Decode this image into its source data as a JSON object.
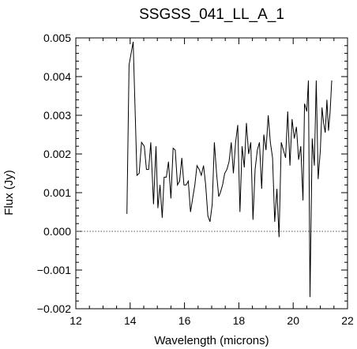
{
  "chart_data": {
    "type": "line",
    "title": "SSGSS_041_LL_A_1",
    "xlabel": "Wavelength (microns)",
    "ylabel": "Flux (Jy)",
    "xlim": [
      12,
      22
    ],
    "ylim": [
      -0.002,
      0.005
    ],
    "x_ticks": [
      "12",
      "14",
      "16",
      "18",
      "20",
      "22"
    ],
    "y_ticks": [
      "−0.002",
      "−0.001",
      "0.000",
      "0.001",
      "0.002",
      "0.003",
      "0.004",
      "0.005"
    ],
    "zero_line": true,
    "grid": false,
    "series": [
      {
        "x": [
          13.88,
          13.96,
          14.11,
          14.25,
          14.33,
          14.42,
          14.52,
          14.6,
          14.68,
          14.76,
          14.86,
          14.95,
          15.02,
          15.1,
          15.18,
          15.25,
          15.33,
          15.41,
          15.5,
          15.58,
          15.66,
          15.74,
          15.82,
          15.9,
          15.98,
          16.06,
          16.14,
          16.22,
          16.3,
          16.38,
          16.46,
          16.54,
          16.62,
          16.7,
          16.78,
          16.86,
          16.94,
          17.02,
          17.1,
          17.18,
          17.26,
          17.32,
          17.4,
          17.48,
          17.56,
          17.64,
          17.72,
          17.8,
          17.88,
          17.96,
          18.04,
          18.12,
          18.2,
          18.28,
          18.36,
          18.44,
          18.52,
          18.6,
          18.68,
          18.76,
          18.84,
          18.92,
          19.0,
          19.08,
          19.16,
          19.24,
          19.32,
          19.4,
          19.48,
          19.56,
          19.64,
          19.72,
          19.8,
          19.88,
          19.96,
          20.04,
          20.12,
          20.2,
          20.28,
          20.36,
          20.42,
          20.5,
          20.56,
          20.62,
          20.7,
          20.78,
          20.85,
          20.92,
          21.0,
          21.06,
          21.12,
          21.18,
          21.24,
          21.3,
          21.36,
          21.42
        ],
        "y": [
          0.00045,
          0.0043,
          0.0049,
          0.00145,
          0.0015,
          0.0023,
          0.0022,
          0.0016,
          0.0016,
          0.0023,
          0.0007,
          0.0022,
          0.0006,
          0.0012,
          0.00035,
          0.0014,
          0.0014,
          0.0018,
          0.00085,
          0.00215,
          0.0021,
          0.0012,
          0.0013,
          0.0019,
          0.0012,
          0.0012,
          0.0013,
          0.0005,
          0.00085,
          0.0012,
          0.0017,
          0.0016,
          0.00145,
          0.0017,
          0.0012,
          0.0004,
          0.00025,
          0.0007,
          0.0023,
          0.0015,
          0.0009,
          0.001,
          0.0012,
          0.0015,
          0.0016,
          0.0018,
          0.0023,
          0.0015,
          0.0023,
          0.00275,
          0.0005,
          0.0022,
          0.00165,
          0.0028,
          0.002,
          0.0023,
          0.0003,
          0.0016,
          0.0021,
          0.0023,
          0.0011,
          0.0025,
          0.0021,
          0.003,
          0.0023,
          0.0019,
          0.00025,
          0.0011,
          -0.00015,
          0.0023,
          0.0021,
          0.0019,
          0.0031,
          0.0017,
          0.0029,
          0.0024,
          0.0027,
          0.00185,
          0.0022,
          0.0008,
          0.0033,
          0.0031,
          0.0039,
          -0.0017,
          0.0024,
          0.0017,
          0.0039,
          0.00135,
          0.0021,
          0.0032,
          0.0028,
          0.00255,
          0.0034,
          0.0026,
          0.0031,
          0.0039
        ]
      }
    ]
  }
}
